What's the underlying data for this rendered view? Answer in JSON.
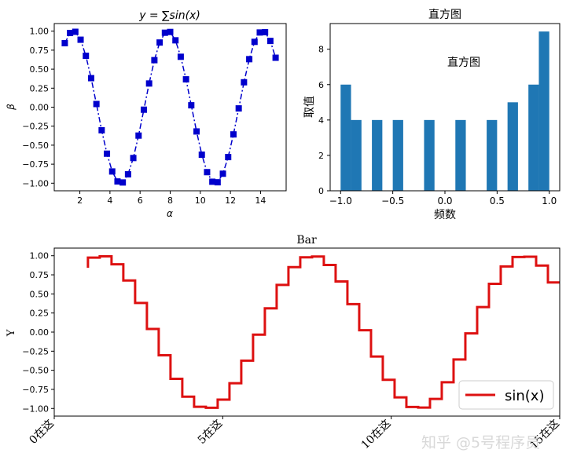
{
  "chart_data": [
    {
      "id": "sine-scatter",
      "type": "line",
      "title": "y = ∑sin(x)",
      "xlabel": "α",
      "ylabel": "β",
      "xlim": [
        0.3,
        15.7
      ],
      "ylim": [
        -1.1,
        1.1
      ],
      "xticks": [
        2,
        4,
        6,
        8,
        10,
        12,
        14
      ],
      "yticks": [
        -1.0,
        -0.75,
        -0.5,
        -0.25,
        0.0,
        0.25,
        0.5,
        0.75,
        1.0
      ],
      "x_start": 1.0,
      "x_step": 0.35,
      "point_count": 41,
      "function": "sin",
      "marker": "square",
      "line_style": "dash-dot",
      "color": "#0000cc",
      "grid": false
    },
    {
      "id": "histogram",
      "type": "bar",
      "title": "直方图",
      "annotation": "直方图",
      "xlabel": "频数",
      "ylabel": "取值",
      "xlim": [
        -1.1,
        1.1
      ],
      "ylim": [
        0,
        9.45
      ],
      "xticks": [
        -1.0,
        -0.5,
        0.0,
        0.5,
        1.0
      ],
      "yticks": [
        0,
        2,
        4,
        6,
        8
      ],
      "bin_edges": [
        -1.0,
        -0.9,
        -0.8,
        -0.7,
        -0.6,
        -0.5,
        -0.4,
        -0.3,
        -0.2,
        -0.1,
        0.0,
        0.1,
        0.2,
        0.3,
        0.4,
        0.5,
        0.6,
        0.7,
        0.8,
        0.9,
        1.0
      ],
      "counts": [
        6,
        4,
        0,
        4,
        0,
        4,
        0,
        0,
        4,
        0,
        0,
        4,
        0,
        0,
        4,
        0,
        5,
        0,
        6,
        9
      ],
      "color": "#1f77b4",
      "grid": false
    },
    {
      "id": "sine-step",
      "type": "line",
      "title": "Bar",
      "xlabel": "",
      "ylabel": "Y",
      "xlim": [
        0,
        15
      ],
      "ylim": [
        -1.1,
        1.1
      ],
      "xticks": [
        0,
        5,
        10,
        15
      ],
      "xtick_labels": [
        "0在这",
        "5在这",
        "10在这",
        "15在这"
      ],
      "yticks": [
        -1.0,
        -0.75,
        -0.5,
        -0.25,
        0.0,
        0.25,
        0.5,
        0.75,
        1.0
      ],
      "x_start": 1.0,
      "x_step": 0.35,
      "point_count": 41,
      "function": "sin",
      "drawstyle": "steps",
      "color": "#dd1111",
      "legend": [
        {
          "label": "sin(x)",
          "color": "#dd1111"
        }
      ],
      "legend_position": "lower-right",
      "grid": false
    }
  ],
  "watermark": "知乎 @5号程序员"
}
